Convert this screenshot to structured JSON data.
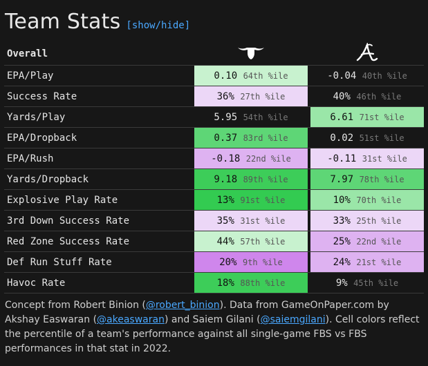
{
  "header": {
    "title": "Team Stats",
    "toggle_label": "[show/hide]"
  },
  "table": {
    "section_label": "Overall",
    "teams": [
      {
        "logo_icon": "longhorn-icon"
      },
      {
        "logo_icon": "script-a-icon"
      }
    ],
    "rows": [
      {
        "stat": "EPA/Play",
        "a": {
          "value": "0.10",
          "pct": "64th %ile",
          "bg": "#c8f2cf"
        },
        "b": {
          "value": "-0.04",
          "pct": "40th %ile",
          "bg": "#171717"
        }
      },
      {
        "stat": "Success Rate",
        "a": {
          "value": "36%",
          "pct": "27th %ile",
          "bg": "#ecd7f7"
        },
        "b": {
          "value": "40%",
          "pct": "46th %ile",
          "bg": "#171717"
        }
      },
      {
        "stat": "Yards/Play",
        "a": {
          "value": "5.95",
          "pct": "54th %ile",
          "bg": "#171717"
        },
        "b": {
          "value": "6.61",
          "pct": "71st %ile",
          "bg": "#9ae6a8"
        }
      },
      {
        "stat": "EPA/Dropback",
        "a": {
          "value": "0.37",
          "pct": "83rd %ile",
          "bg": "#5ed676"
        },
        "b": {
          "value": "0.02",
          "pct": "51st %ile",
          "bg": "#171717"
        }
      },
      {
        "stat": "EPA/Rush",
        "a": {
          "value": "-0.18",
          "pct": "22nd %ile",
          "bg": "#deb2f1"
        },
        "b": {
          "value": "-0.11",
          "pct": "31st %ile",
          "bg": "#ecd7f7"
        }
      },
      {
        "stat": "Yards/Dropback",
        "a": {
          "value": "9.18",
          "pct": "89th %ile",
          "bg": "#3dcd59"
        },
        "b": {
          "value": "7.97",
          "pct": "78th %ile",
          "bg": "#5ed676"
        }
      },
      {
        "stat": "Explosive Play Rate",
        "a": {
          "value": "13%",
          "pct": "91st %ile",
          "bg": "#33cb51"
        },
        "b": {
          "value": "10%",
          "pct": "70th %ile",
          "bg": "#9ae6a8"
        }
      },
      {
        "stat": "3rd Down Success Rate",
        "a": {
          "value": "35%",
          "pct": "31st %ile",
          "bg": "#ecd7f7"
        },
        "b": {
          "value": "33%",
          "pct": "25th %ile",
          "bg": "#ecd7f7"
        }
      },
      {
        "stat": "Red Zone Success Rate",
        "a": {
          "value": "44%",
          "pct": "57th %ile",
          "bg": "#c8f2cf"
        },
        "b": {
          "value": "25%",
          "pct": "22nd %ile",
          "bg": "#deb2f1"
        }
      },
      {
        "stat": "Def Run Stuff Rate",
        "a": {
          "value": "20%",
          "pct": "9th %ile",
          "bg": "#cf86ec"
        },
        "b": {
          "value": "24%",
          "pct": "21st %ile",
          "bg": "#deb2f1"
        }
      },
      {
        "stat": "Havoc Rate",
        "a": {
          "value": "18%",
          "pct": "88th %ile",
          "bg": "#3dcd59"
        },
        "b": {
          "value": "9%",
          "pct": "45th %ile",
          "bg": "#171717"
        }
      }
    ]
  },
  "footer": {
    "t1": "Concept from Robert Binion (",
    "link1": "@robert_binion",
    "t2": "). Data from GameOnPaper.com by Akshay Easwaran (",
    "link2": "@akeaswaran",
    "t3": ") and Saiem Gilani (",
    "link3": "@saiemgilani",
    "t4": "). Cell colors reflect the percentile of a team's performance against all single-game FBS vs FBS performances in that stat in 2022."
  }
}
